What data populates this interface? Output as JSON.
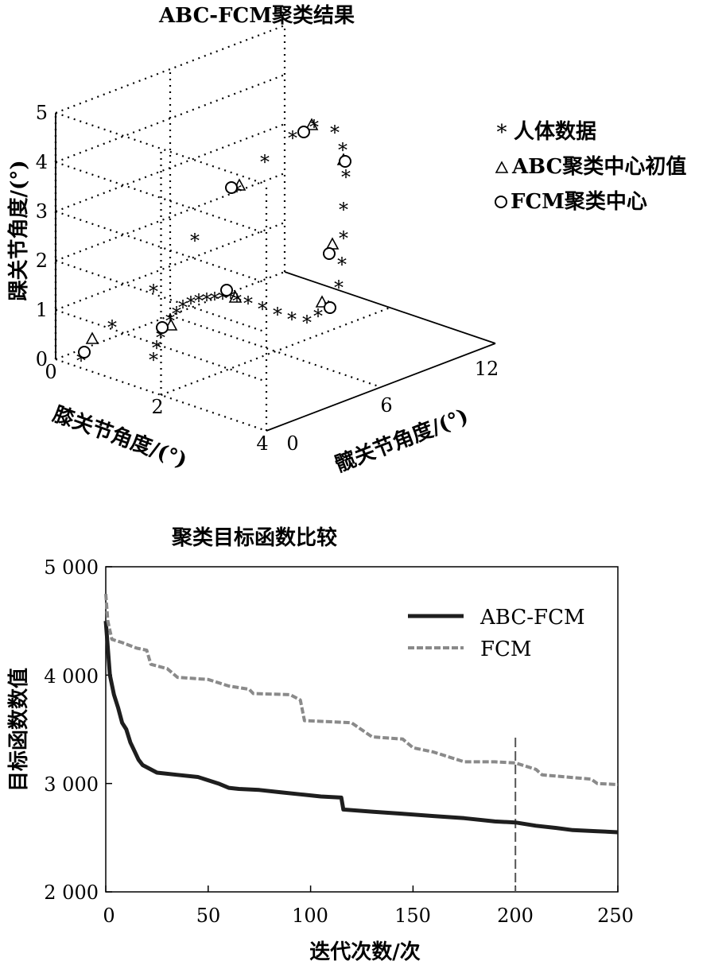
{
  "chart_data": [
    {
      "type": "scatter",
      "title": "ABC-FCM聚类结果",
      "axes": {
        "x": {
          "label": "髋关节角度/(°)",
          "ticks": [
            "0",
            "6",
            "12"
          ],
          "range": [
            0,
            12
          ]
        },
        "y": {
          "label": "膝关节角度/(°)",
          "ticks": [
            "0",
            "2",
            "4"
          ],
          "range": [
            0,
            4
          ]
        },
        "z": {
          "label": "踝关节角度/(°)",
          "ticks": [
            "0",
            "1",
            "2",
            "3",
            "4",
            "5"
          ],
          "range": [
            0,
            5
          ]
        }
      },
      "grid": true,
      "legend_position": "right",
      "series": [
        {
          "name": "人体数据",
          "marker": "*"
        },
        {
          "name": "ABC聚类中心初值",
          "marker": "triangle"
        },
        {
          "name": "FCM聚类中心",
          "marker": "circle"
        }
      ]
    },
    {
      "type": "line",
      "title": "聚类目标函数比较",
      "xlabel": "迭代次数/次",
      "ylabel": "目标函数数值",
      "xlim": [
        0,
        250
      ],
      "ylim": [
        2000,
        5000
      ],
      "xticks": [
        "0",
        "50",
        "100",
        "150",
        "200",
        "250"
      ],
      "yticks": [
        "2 000",
        "3 000",
        "4 000",
        "5 000"
      ],
      "legend_position": "top-right",
      "reference_line_x": 200,
      "series": [
        {
          "name": "ABC-FCM",
          "color": "#1e1e1e",
          "style": "solid",
          "points": [
            [
              0,
              4500
            ],
            [
              2,
              4000
            ],
            [
              4,
              3820
            ],
            [
              6,
              3700
            ],
            [
              8,
              3560
            ],
            [
              10,
              3500
            ],
            [
              12,
              3380
            ],
            [
              14,
              3300
            ],
            [
              16,
              3220
            ],
            [
              18,
              3170
            ],
            [
              25,
              3100
            ],
            [
              35,
              3080
            ],
            [
              45,
              3060
            ],
            [
              55,
              3000
            ],
            [
              60,
              2960
            ],
            [
              65,
              2950
            ],
            [
              75,
              2940
            ],
            [
              85,
              2920
            ],
            [
              95,
              2900
            ],
            [
              105,
              2880
            ],
            [
              115,
              2870
            ],
            [
              116,
              2760
            ],
            [
              130,
              2740
            ],
            [
              145,
              2720
            ],
            [
              160,
              2700
            ],
            [
              175,
              2680
            ],
            [
              190,
              2650
            ],
            [
              200,
              2640
            ],
            [
              210,
              2610
            ],
            [
              220,
              2590
            ],
            [
              228,
              2570
            ],
            [
              240,
              2560
            ],
            [
              250,
              2550
            ]
          ]
        },
        {
          "name": "FCM",
          "color": "#8a8a8a",
          "style": "dashed",
          "points": [
            [
              0,
              4750
            ],
            [
              1,
              4500
            ],
            [
              3,
              4330
            ],
            [
              8,
              4300
            ],
            [
              15,
              4250
            ],
            [
              20,
              4230
            ],
            [
              22,
              4100
            ],
            [
              30,
              4060
            ],
            [
              35,
              3980
            ],
            [
              50,
              3960
            ],
            [
              60,
              3900
            ],
            [
              70,
              3870
            ],
            [
              72,
              3830
            ],
            [
              90,
              3820
            ],
            [
              95,
              3770
            ],
            [
              97,
              3580
            ],
            [
              110,
              3570
            ],
            [
              120,
              3560
            ],
            [
              130,
              3430
            ],
            [
              145,
              3410
            ],
            [
              150,
              3330
            ],
            [
              160,
              3290
            ],
            [
              170,
              3230
            ],
            [
              175,
              3200
            ],
            [
              190,
              3200
            ],
            [
              200,
              3190
            ],
            [
              210,
              3130
            ],
            [
              213,
              3080
            ],
            [
              225,
              3060
            ],
            [
              237,
              3040
            ],
            [
              240,
              3000
            ],
            [
              250,
              2990
            ]
          ]
        }
      ]
    }
  ]
}
